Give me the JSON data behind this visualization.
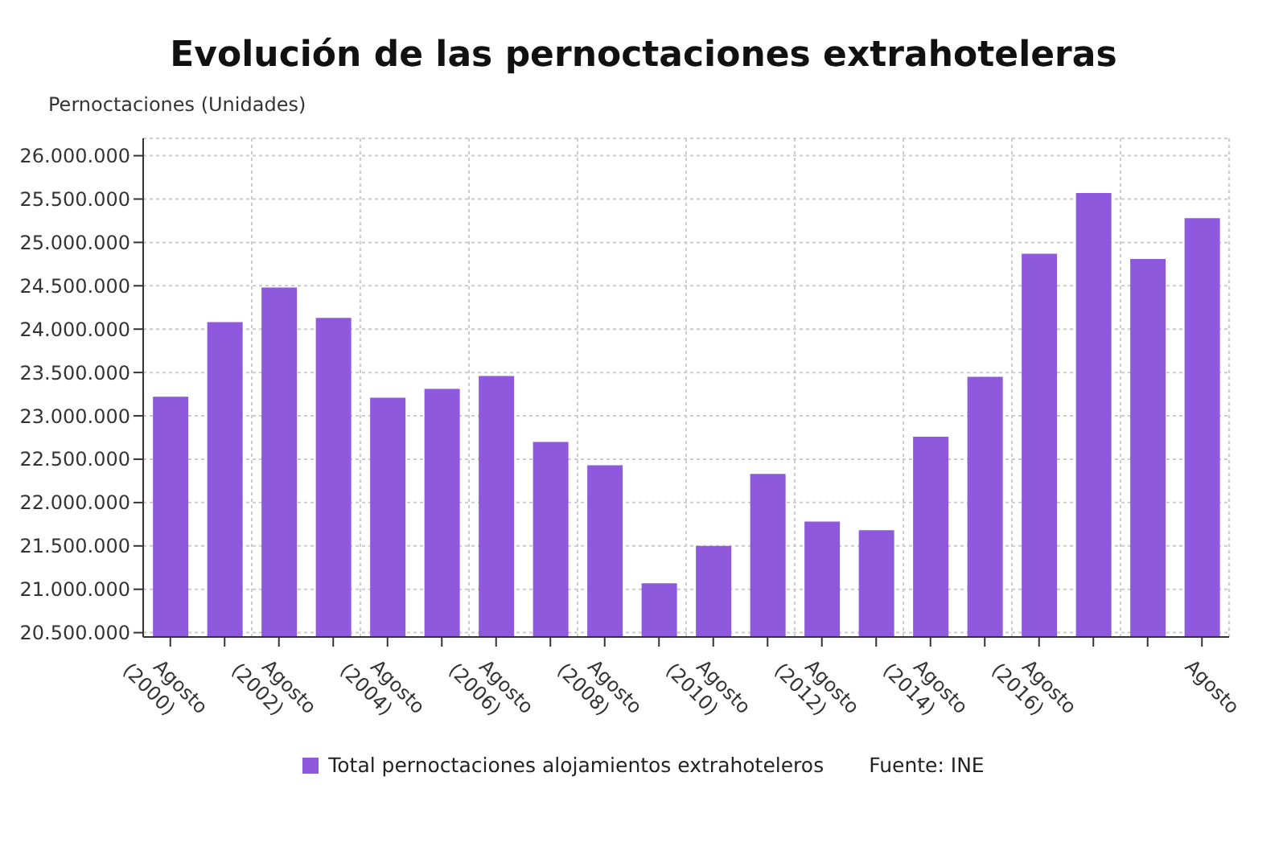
{
  "chart_data": {
    "type": "bar",
    "title": "Evolución de las pernoctaciones extrahoteleras",
    "ylabel": "Pernoctaciones (Unidades)",
    "categories": [
      "Agosto (2000)",
      null,
      "Agosto (2002)",
      null,
      "Agosto (2004)",
      null,
      "Agosto (2006)",
      null,
      "Agosto (2008)",
      null,
      "Agosto (2010)",
      null,
      "Agosto (2012)",
      null,
      "Agosto (2014)",
      null,
      "Agosto (2016)",
      null,
      null,
      "Agosto"
    ],
    "series": [
      {
        "name": "Total pernoctaciones alojamientos extrahoteleros",
        "color": "#8e59dc",
        "values": [
          23220000,
          24080000,
          24480000,
          24130000,
          23210000,
          23310000,
          23460000,
          22700000,
          22430000,
          21070000,
          21500000,
          22330000,
          21780000,
          21680000,
          22760000,
          23450000,
          24870000,
          25570000,
          24810000,
          25280000
        ]
      }
    ],
    "ylim": [
      20450000,
      26200000
    ],
    "yticks": [
      {
        "value": 20500000,
        "label": "20.500.000"
      },
      {
        "value": 21000000,
        "label": "21.000.000"
      },
      {
        "value": 21500000,
        "label": "21.500.000"
      },
      {
        "value": 22000000,
        "label": "22.000.000"
      },
      {
        "value": 22500000,
        "label": "22.500.000"
      },
      {
        "value": 23000000,
        "label": "23.000.000"
      },
      {
        "value": 23500000,
        "label": "23.500.000"
      },
      {
        "value": 24000000,
        "label": "24.000.000"
      },
      {
        "value": 24500000,
        "label": "24.500.000"
      },
      {
        "value": 25000000,
        "label": "25.000.000"
      },
      {
        "value": 25500000,
        "label": "25.500.000"
      },
      {
        "value": 26000000,
        "label": "26.000.000"
      }
    ],
    "grid": true,
    "legend": "bottom",
    "annotations": [
      "Fuente: INE"
    ]
  }
}
